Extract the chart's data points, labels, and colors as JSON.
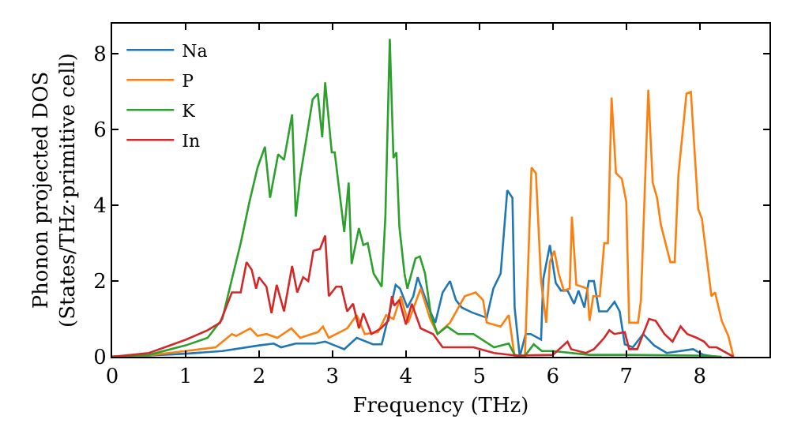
{
  "chart_data": {
    "type": "line",
    "xlabel": "Frequency (THz)",
    "ylabel": "Phonon projected DOS\n(States/THz·primitive cell)",
    "xlim": [
      0,
      8.95
    ],
    "ylim": [
      0,
      8.8
    ],
    "xticks": [
      0,
      1,
      2,
      3,
      4,
      5,
      6,
      7,
      8
    ],
    "yticks": [
      0,
      2,
      4,
      6,
      8
    ],
    "grid": false,
    "legend": "top left",
    "marker": "none",
    "line_style": "solid",
    "series": [
      {
        "name": "Na",
        "color": "#1f77b4",
        "x": [
          0,
          0.5,
          1.0,
          1.5,
          2.0,
          2.2,
          2.3,
          2.5,
          2.77,
          2.9,
          3.03,
          3.16,
          3.33,
          3.55,
          3.67,
          3.78,
          3.86,
          3.92,
          4.02,
          4.1,
          4.16,
          4.33,
          4.4,
          4.5,
          4.6,
          4.68,
          4.76,
          4.9,
          5.1,
          5.19,
          5.29,
          5.38,
          5.45,
          5.48,
          5.55,
          5.63,
          5.7,
          5.84,
          5.87,
          5.96,
          6.04,
          6.11,
          6.2,
          6.29,
          6.35,
          6.43,
          6.49,
          6.56,
          6.63,
          6.74,
          6.84,
          6.91,
          6.98,
          7.09,
          7.23,
          7.38,
          7.55,
          7.91,
          8.05,
          8.23
        ],
        "values": [
          0,
          0.03,
          0.08,
          0.15,
          0.3,
          0.35,
          0.25,
          0.35,
          0.35,
          0.4,
          0.3,
          0.2,
          0.5,
          0.33,
          0.33,
          1.2,
          1.9,
          1.8,
          1.3,
          1.6,
          2.1,
          1.2,
          0.9,
          1.7,
          2.0,
          1.5,
          1.3,
          1.17,
          1.03,
          1.8,
          2.2,
          4.4,
          4.2,
          1.3,
          0,
          0.6,
          0.6,
          0.45,
          2.05,
          2.95,
          1.95,
          1.75,
          1.75,
          1.4,
          1.75,
          1.3,
          2.0,
          2.0,
          1.2,
          1.2,
          1.45,
          1.2,
          0.33,
          0.25,
          0.6,
          0.3,
          0.1,
          0.2,
          0.05,
          0
        ]
      },
      {
        "name": "P",
        "color": "#ff7f0e",
        "x": [
          0,
          0.5,
          1.0,
          1.41,
          1.63,
          1.69,
          1.88,
          1.98,
          2.1,
          2.25,
          2.44,
          2.56,
          2.8,
          2.87,
          2.95,
          3.1,
          3.2,
          3.33,
          3.44,
          3.62,
          3.73,
          3.83,
          3.93,
          4.03,
          4.2,
          4.33,
          4.43,
          4.6,
          4.8,
          4.95,
          5.05,
          5.1,
          5.29,
          5.4,
          5.48,
          5.62,
          5.71,
          5.77,
          5.84,
          5.91,
          5.96,
          6.02,
          6.08,
          6.15,
          6.23,
          6.26,
          6.32,
          6.4,
          6.47,
          6.5,
          6.55,
          6.64,
          6.7,
          6.75,
          6.8,
          6.86,
          6.94,
          7.0,
          7.04,
          7.16,
          7.2,
          7.3,
          7.36,
          7.42,
          7.47,
          7.6,
          7.66,
          7.71,
          7.82,
          7.88,
          7.98,
          8.03,
          8.16,
          8.21,
          8.3,
          8.39,
          8.46
        ],
        "values": [
          0,
          0.04,
          0.15,
          0.25,
          0.6,
          0.55,
          0.75,
          0.55,
          0.6,
          0.5,
          0.75,
          0.5,
          0.65,
          0.8,
          0.5,
          0.65,
          0.75,
          1.1,
          0.6,
          0.65,
          1.1,
          1.0,
          1.6,
          0.9,
          1.8,
          1.0,
          0.6,
          0.9,
          1.6,
          1.7,
          1.5,
          0.9,
          0.8,
          1.1,
          0,
          0,
          5.0,
          4.85,
          2.0,
          0.9,
          2.5,
          2.8,
          2.2,
          1.75,
          1.8,
          3.7,
          1.9,
          1.85,
          1.8,
          0.95,
          1.6,
          1.6,
          3.0,
          3.0,
          6.85,
          4.85,
          4.7,
          4.1,
          0.9,
          0.9,
          1.5,
          7.05,
          4.6,
          4.2,
          3.5,
          2.5,
          2.5,
          4.8,
          6.95,
          7.0,
          3.9,
          3.65,
          1.6,
          1.7,
          0.95,
          0.55,
          0
        ]
      },
      {
        "name": "K",
        "color": "#2ca02c",
        "x": [
          0,
          0.5,
          1.0,
          1.3,
          1.5,
          1.63,
          1.75,
          1.87,
          1.98,
          2.08,
          2.15,
          2.26,
          2.34,
          2.45,
          2.5,
          2.56,
          2.73,
          2.8,
          2.86,
          2.9,
          2.99,
          3.03,
          3.16,
          3.22,
          3.26,
          3.36,
          3.42,
          3.48,
          3.56,
          3.67,
          3.72,
          3.78,
          3.83,
          3.87,
          3.91,
          3.98,
          4.02,
          4.13,
          4.19,
          4.26,
          4.34,
          4.43,
          4.56,
          4.71,
          4.82,
          4.92,
          5.2,
          5.4,
          5.48,
          5.61,
          5.74,
          5.85,
          6.0,
          6.5,
          7.0,
          8.0,
          8.3
        ],
        "values": [
          0,
          0.05,
          0.3,
          0.5,
          1.0,
          2.05,
          3.0,
          4.1,
          5.0,
          5.55,
          4.2,
          5.35,
          5.2,
          6.4,
          3.7,
          4.75,
          6.8,
          6.95,
          5.8,
          7.25,
          5.4,
          5.4,
          3.3,
          4.6,
          2.45,
          3.4,
          2.95,
          3.0,
          2.2,
          1.85,
          3.7,
          8.4,
          5.25,
          5.4,
          3.45,
          2.2,
          1.8,
          2.6,
          2.65,
          2.2,
          1.1,
          0.6,
          0.8,
          0.6,
          0.6,
          0.6,
          0.25,
          0.35,
          0.05,
          0,
          0.33,
          0.15,
          0.15,
          0.05,
          0.05,
          0.03,
          0
        ]
      },
      {
        "name": "In",
        "color": "#d62728",
        "x": [
          0,
          0.5,
          1.0,
          1.3,
          1.47,
          1.57,
          1.63,
          1.75,
          1.83,
          1.9,
          1.96,
          2.0,
          2.1,
          2.17,
          2.24,
          2.34,
          2.45,
          2.52,
          2.6,
          2.67,
          2.74,
          2.83,
          2.9,
          2.95,
          3.05,
          3.12,
          3.2,
          3.28,
          3.36,
          3.42,
          3.53,
          3.66,
          3.76,
          3.81,
          3.84,
          3.91,
          4.0,
          4.08,
          4.2,
          4.37,
          4.5,
          4.7,
          4.92,
          5.2,
          5.5,
          6.0,
          6.2,
          6.25,
          6.45,
          6.56,
          6.7,
          6.77,
          6.84,
          6.98,
          7.04,
          7.15,
          7.31,
          7.4,
          7.52,
          7.63,
          7.74,
          7.83,
          7.96,
          8.06,
          8.13,
          8.23,
          8.46
        ],
        "values": [
          0,
          0.1,
          0.45,
          0.7,
          0.9,
          1.4,
          1.7,
          1.7,
          2.5,
          2.3,
          1.8,
          2.1,
          1.85,
          1.15,
          1.9,
          1.2,
          2.4,
          1.7,
          2.1,
          2.0,
          2.8,
          2.85,
          3.2,
          1.6,
          1.85,
          1.85,
          1.2,
          1.4,
          0.75,
          1.15,
          0.6,
          0.75,
          0.95,
          1.6,
          1.35,
          1.5,
          0.85,
          1.4,
          0.75,
          0.6,
          0.25,
          0.25,
          0.25,
          0.1,
          0.03,
          0.05,
          0.4,
          0.2,
          0.1,
          0.2,
          0.5,
          0.7,
          0.6,
          0.65,
          0.2,
          0.2,
          1.0,
          0.95,
          0.6,
          0.4,
          0.8,
          0.6,
          0.5,
          0.4,
          0.25,
          0.25,
          0
        ]
      }
    ]
  }
}
